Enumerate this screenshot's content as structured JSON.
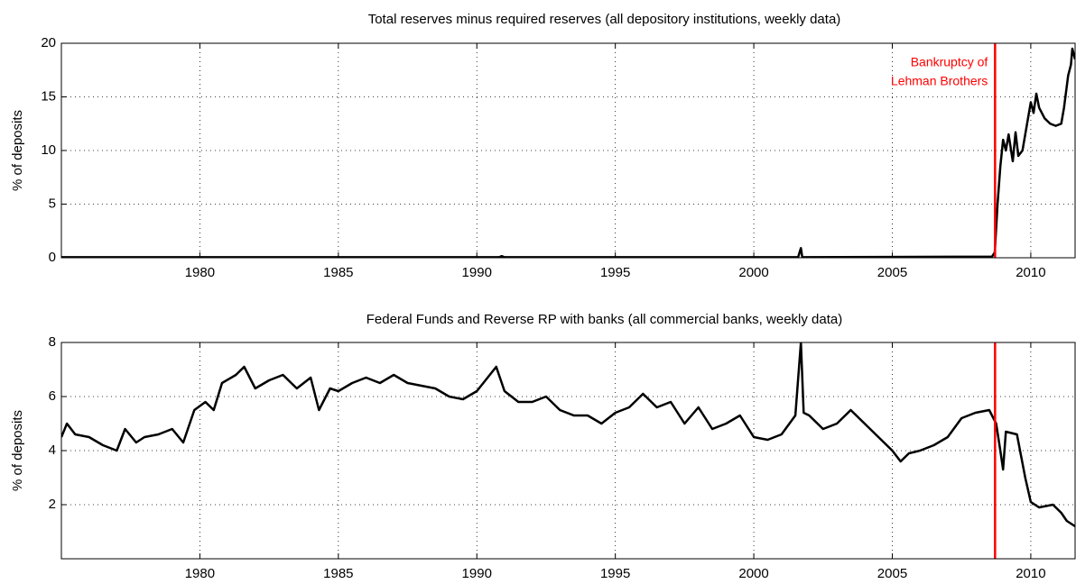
{
  "chart_data": [
    {
      "type": "line",
      "title": "Total reserves minus required reserves (all depository institutions, weekly data)",
      "y_label": "% of deposits",
      "xlim": [
        1975,
        2011.6
      ],
      "xticks": [
        1980,
        1985,
        1990,
        1995,
        2000,
        2005,
        2010
      ],
      "ylim": [
        0,
        20
      ],
      "yticks": [
        0,
        5,
        10,
        15,
        20
      ],
      "grid": true,
      "vline": {
        "x": 2008.71,
        "color": "#ff0000"
      },
      "annotation": {
        "lines": [
          "Bankruptcy of",
          "Lehman Brothers"
        ],
        "color": "#ff0000"
      },
      "series": [
        {
          "color": "#000000",
          "x": [
            1975,
            1990.8,
            1990.9,
            1991.0,
            2001.6,
            2001.7,
            2001.75,
            2008.6,
            2008.7,
            2008.8,
            2008.9,
            2009.0,
            2009.1,
            2009.2,
            2009.35,
            2009.45,
            2009.55,
            2009.7,
            2009.8,
            2009.9,
            2010.0,
            2010.1,
            2010.2,
            2010.3,
            2010.5,
            2010.7,
            2010.9,
            2011.1,
            2011.2,
            2011.35,
            2011.45,
            2011.5,
            2011.55,
            2011.6
          ],
          "values": [
            0.05,
            0.05,
            0.15,
            0.05,
            0.05,
            0.9,
            0.05,
            0.1,
            0.5,
            5,
            8.5,
            11,
            10,
            11.5,
            9,
            11.7,
            9.5,
            10,
            11.5,
            13,
            14.5,
            13.5,
            15.3,
            14,
            13,
            12.5,
            12.3,
            12.5,
            14,
            17,
            18,
            19.5,
            19,
            18.5
          ]
        }
      ]
    },
    {
      "type": "line",
      "title": "Federal Funds and Reverse RP with banks (all commercial banks, weekly data)",
      "y_label": "% of deposits",
      "xlim": [
        1975,
        2011.6
      ],
      "xticks": [
        1980,
        1985,
        1990,
        1995,
        2000,
        2005,
        2010
      ],
      "ylim": [
        0,
        8
      ],
      "yticks": [
        2,
        4,
        6,
        8
      ],
      "grid": true,
      "vline": {
        "x": 2008.71,
        "color": "#ff0000"
      },
      "series": [
        {
          "color": "#000000",
          "x": [
            1975,
            1975.2,
            1975.5,
            1976,
            1976.5,
            1977,
            1977.3,
            1977.7,
            1978,
            1978.5,
            1979,
            1979.4,
            1979.8,
            1980.2,
            1980.5,
            1980.8,
            1981.3,
            1981.6,
            1982,
            1982.5,
            1983,
            1983.5,
            1984,
            1984.3,
            1984.7,
            1985,
            1985.5,
            1986,
            1986.5,
            1987,
            1987.5,
            1988,
            1988.5,
            1989,
            1989.5,
            1990,
            1990.7,
            1991,
            1991.5,
            1992,
            1992.5,
            1993,
            1993.5,
            1994,
            1994.5,
            1995,
            1995.5,
            1996,
            1996.5,
            1997,
            1997.5,
            1998,
            1998.5,
            1999,
            1999.5,
            2000,
            2000.5,
            2001,
            2001.5,
            2001.7,
            2001.8,
            2002,
            2002.5,
            2003,
            2003.5,
            2004,
            2004.5,
            2005,
            2005.3,
            2005.6,
            2006,
            2006.5,
            2007,
            2007.5,
            2008,
            2008.5,
            2008.75,
            2008.9,
            2009.0,
            2009.1,
            2009.5,
            2009.8,
            2010.0,
            2010.3,
            2010.8,
            2011.1,
            2011.3,
            2011.6
          ],
          "values": [
            4.5,
            5.0,
            4.6,
            4.5,
            4.2,
            4.0,
            4.8,
            4.3,
            4.5,
            4.6,
            4.8,
            4.3,
            5.5,
            5.8,
            5.5,
            6.5,
            6.8,
            7.1,
            6.3,
            6.6,
            6.8,
            6.3,
            6.7,
            5.5,
            6.3,
            6.2,
            6.5,
            6.7,
            6.5,
            6.8,
            6.5,
            6.4,
            6.3,
            6.0,
            5.9,
            6.2,
            7.1,
            6.2,
            5.8,
            5.8,
            6.0,
            5.5,
            5.3,
            5.3,
            5.0,
            5.4,
            5.6,
            6.1,
            5.6,
            5.8,
            5.0,
            5.6,
            4.8,
            5.0,
            5.3,
            4.5,
            4.4,
            4.6,
            5.3,
            8.0,
            5.4,
            5.3,
            4.8,
            5.0,
            5.5,
            5.0,
            4.5,
            4.0,
            3.6,
            3.9,
            4.0,
            4.2,
            4.5,
            5.2,
            5.4,
            5.5,
            5.0,
            4.0,
            3.3,
            4.7,
            4.6,
            3.0,
            2.1,
            1.9,
            2.0,
            1.7,
            1.4,
            1.2
          ]
        }
      ]
    }
  ]
}
